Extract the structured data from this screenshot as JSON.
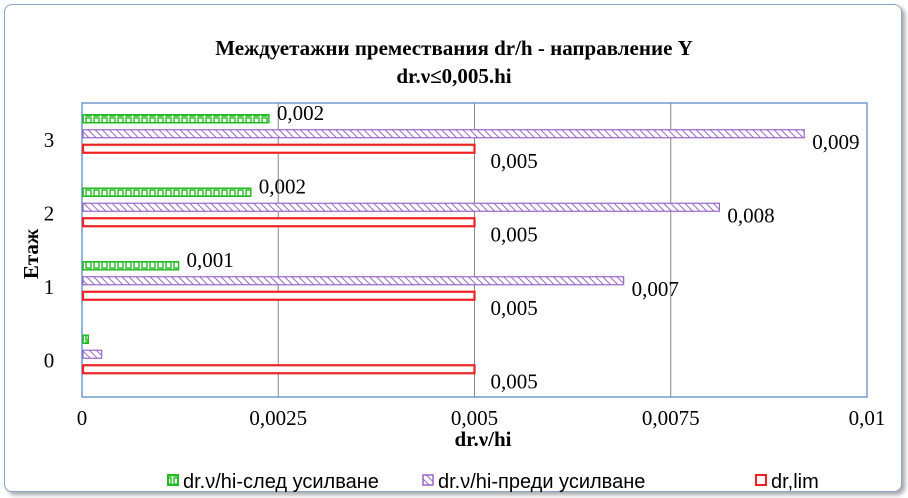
{
  "chart_data": {
    "type": "bar",
    "orientation": "horizontal",
    "title": "Междуетажни премествания dr/h - направление Y",
    "subtitle": "dr.ν≤0,005.hi",
    "xlabel": "dr.ν/hi",
    "ylabel": "Етаж",
    "categories": [
      "0",
      "1",
      "2",
      "3"
    ],
    "xlim": [
      0,
      0.01
    ],
    "xticks": [
      "0",
      "0,0025",
      "0,005",
      "0,0075",
      "0,01"
    ],
    "grid": true,
    "legend_position": "bottom",
    "series": [
      {
        "name": "dr.ν/hi-след усилване",
        "color": "#22bb22",
        "pattern": "brick",
        "values": [
          8e-05,
          0.00123,
          0.00215,
          0.00238
        ],
        "labels": [
          "",
          "0,001",
          "0,002",
          "0,002"
        ]
      },
      {
        "name": "dr.ν/hi-преди усилване",
        "color": "#9966cc",
        "pattern": "diagonal",
        "values": [
          0.00025,
          0.0069,
          0.00812,
          0.0092
        ],
        "labels": [
          "",
          "0,007",
          "0,008",
          "0,009"
        ]
      },
      {
        "name": "dr,lim",
        "color": "#ee2222",
        "pattern": "hollow",
        "values": [
          0.005,
          0.005,
          0.005,
          0.005
        ],
        "labels": [
          "0,005",
          "0,005",
          "0,005",
          "0,005"
        ]
      }
    ]
  }
}
